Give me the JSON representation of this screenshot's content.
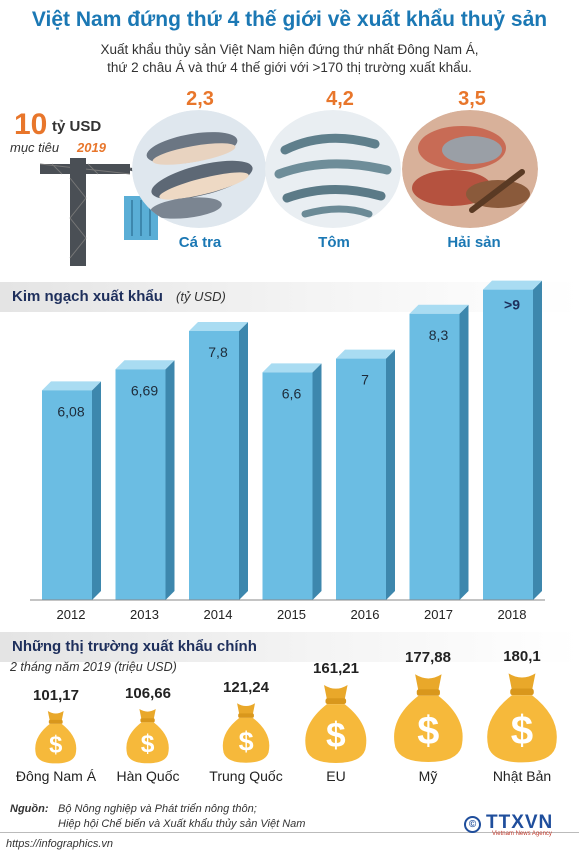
{
  "header": {
    "title": "Việt Nam đứng thứ 4 thế giới về xuất khẩu thuỷ sản",
    "subtitle_line1": "Xuất khẩu thủy sản Việt Nam hiện đứng thứ nhất Đông Nam Á,",
    "subtitle_line2": "thứ 2 châu Á và thứ 4 thế giới với >170 thị trường xuất khẩu."
  },
  "target": {
    "value": "10",
    "unit": "tỷ USD",
    "note": "mục tiêu",
    "year": "2019"
  },
  "products": [
    {
      "value": "2,3",
      "name": "Cá tra"
    },
    {
      "value": "4,2",
      "name": "Tôm"
    },
    {
      "value": "3,5",
      "name": "Hải sản"
    }
  ],
  "colors": {
    "title_blue": "#1b78b4",
    "accent_orange": "#e8762b",
    "bar_blue": "#6bbde3",
    "bar_shadow": "#3d87ad",
    "coin_gold": "#f6b93b"
  },
  "chart_data": {
    "type": "bar",
    "title": "Kim ngạch xuất khẩu",
    "unit": "(tỷ USD)",
    "categories": [
      "2012",
      "2013",
      "2014",
      "2015",
      "2016",
      "2017",
      "2018"
    ],
    "values": [
      6.08,
      6.69,
      7.8,
      6.6,
      7,
      8.3,
      9
    ],
    "labels": [
      "6,08",
      "6,69",
      "7,8",
      "6,6",
      "7",
      "8,3",
      ">9"
    ],
    "ylim": [
      0,
      9
    ],
    "grid": false,
    "legend": "none"
  },
  "markets": {
    "title": "Những thị trường xuất khẩu chính",
    "subtitle": "2 tháng năm 2019 (triệu USD)",
    "items": [
      {
        "name": "Đông Nam Á",
        "value": "101,17",
        "amount": 101.17
      },
      {
        "name": "Hàn Quốc",
        "value": "106,66",
        "amount": 106.66
      },
      {
        "name": "Trung Quốc",
        "value": "121,24",
        "amount": 121.24
      },
      {
        "name": "EU",
        "value": "161,21",
        "amount": 161.21
      },
      {
        "name": "Mỹ",
        "value": "177,88",
        "amount": 177.88
      },
      {
        "name": "Nhật Bản",
        "value": "180,1",
        "amount": 180.1
      }
    ]
  },
  "source": {
    "label": "Nguồn:",
    "line1": "Bộ Nông nghiệp và Phát triển nông thôn;",
    "line2": "Hiệp hội Chế biến và Xuất khẩu thủy sản Việt Nam"
  },
  "footer": {
    "url": "https://infographics.vn",
    "logo": "TTXVN",
    "logo_sub": "Vietnam News Agency",
    "copyright_symbol": "©"
  }
}
